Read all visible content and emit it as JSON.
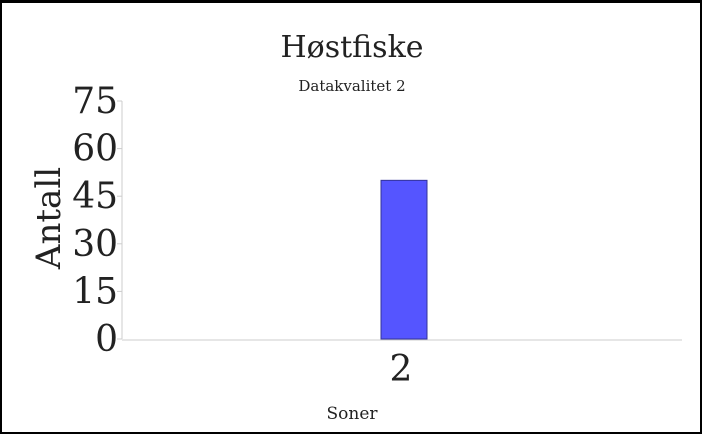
{
  "chart_data": {
    "type": "bar",
    "title": "Høstfiske",
    "subtitle": "Datakvalitet 2",
    "xlabel": "Soner",
    "ylabel": "Antall",
    "categories": [
      "2"
    ],
    "values": [
      50
    ],
    "yticks": [
      "0",
      "15",
      "30",
      "45",
      "60",
      "75"
    ],
    "ylim": [
      0,
      75
    ],
    "grid": false,
    "bar_color": "#5555ff",
    "bar_edge_color": "#333399"
  }
}
